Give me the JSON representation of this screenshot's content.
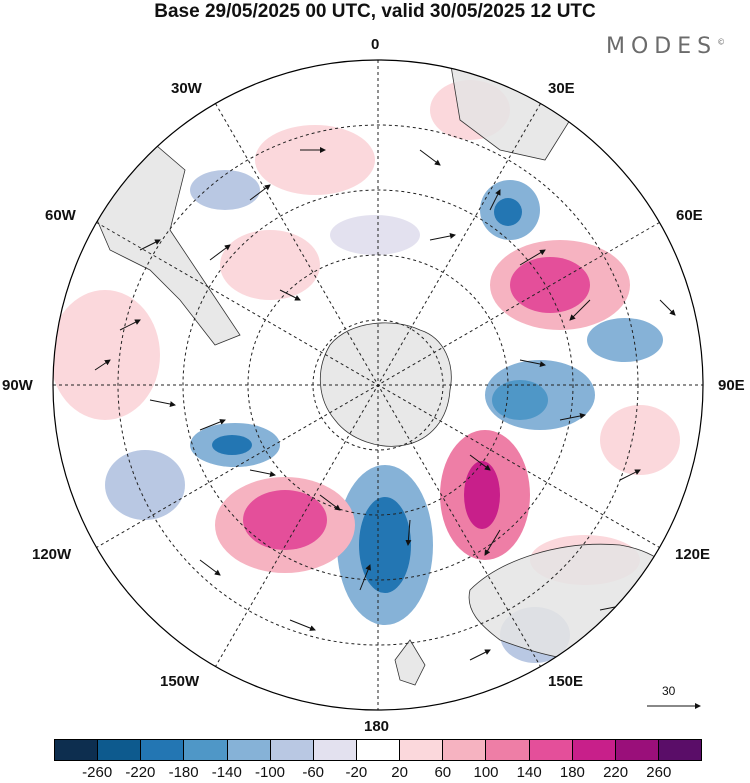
{
  "title": "Base 29/05/2025 00 UTC, valid 30/05/2025 12 UTC",
  "brand": "MODES",
  "brand_mark": "©",
  "longitude_labels": {
    "top": "0",
    "bottom": "180",
    "left": "90W",
    "right": "90E",
    "nw30": "30W",
    "ne30": "30E",
    "nw60": "60W",
    "ne60": "60E",
    "sw120": "120W",
    "se120": "120E",
    "sw150": "150W",
    "se150": "150E"
  },
  "vector_scale_label": "30",
  "colorbar": {
    "colors": [
      "#0d2e4f",
      "#0d5a8e",
      "#2376b3",
      "#4f97c7",
      "#86b2d7",
      "#b9c8e3",
      "#e3e1ef",
      "#ffffff",
      "#fbd8dc",
      "#f6b3c1",
      "#ee7ea6",
      "#e44f9a",
      "#c81f8a",
      "#9a0f7a",
      "#5a0d68"
    ],
    "ticks": [
      "-260",
      "-220",
      "-180",
      "-140",
      "-100",
      "-60",
      "-20",
      "20",
      "60",
      "100",
      "140",
      "180",
      "220",
      "260"
    ]
  },
  "map_colors": {
    "land": "#e4e4e4",
    "ocean": "#ffffff",
    "coast": "#333333"
  }
}
